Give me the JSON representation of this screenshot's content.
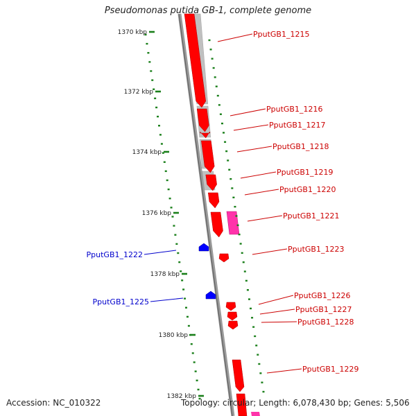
{
  "title": "Pseudomonas putida GB-1, complete genome",
  "footer": {
    "accession": "Accession: NC_010322",
    "summary": "Topology: circular; Length: 6,078,430 bp; Genes: 5,506"
  },
  "colors": {
    "forward_gene": "#ff0000",
    "reverse_gene": "#0000ff",
    "rna_gene": "#ff33aa",
    "ruler": "#1a7f1a",
    "backbone": "#888888",
    "shadow_track": "#c0c0c0"
  },
  "ticks": [
    "1370 kbp",
    "1372 kbp",
    "1374 kbp",
    "1376 kbp",
    "1378 kbp",
    "1380 kbp",
    "1382 kbp"
  ],
  "genes_right": [
    {
      "label": "PputGB1_1215"
    },
    {
      "label": "PputGB1_1216"
    },
    {
      "label": "PputGB1_1217"
    },
    {
      "label": "PputGB1_1218"
    },
    {
      "label": "PputGB1_1219"
    },
    {
      "label": "PputGB1_1220"
    },
    {
      "label": "PputGB1_1221"
    },
    {
      "label": "PputGB1_1223"
    },
    {
      "label": "PputGB1_1226"
    },
    {
      "label": "PputGB1_1227"
    },
    {
      "label": "PputGB1_1228"
    },
    {
      "label": "PputGB1_1229"
    }
  ],
  "genes_left": [
    {
      "label": "PputGB1_1222"
    },
    {
      "label": "PputGB1_1225"
    }
  ]
}
